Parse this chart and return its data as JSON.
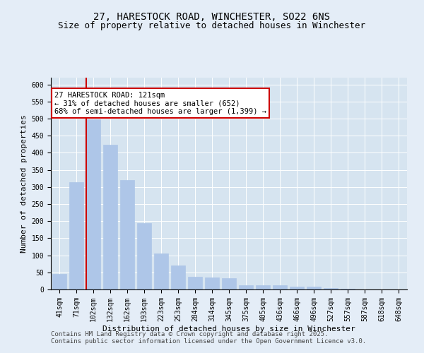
{
  "title_line1": "27, HARESTOCK ROAD, WINCHESTER, SO22 6NS",
  "title_line2": "Size of property relative to detached houses in Winchester",
  "xlabel": "Distribution of detached houses by size in Winchester",
  "ylabel": "Number of detached properties",
  "categories": [
    "41sqm",
    "71sqm",
    "102sqm",
    "132sqm",
    "162sqm",
    "193sqm",
    "223sqm",
    "253sqm",
    "284sqm",
    "314sqm",
    "345sqm",
    "375sqm",
    "405sqm",
    "436sqm",
    "466sqm",
    "496sqm",
    "527sqm",
    "557sqm",
    "587sqm",
    "618sqm",
    "648sqm"
  ],
  "values": [
    46,
    315,
    498,
    423,
    320,
    195,
    105,
    70,
    38,
    35,
    33,
    13,
    12,
    12,
    8,
    8,
    5,
    2,
    1,
    1,
    1
  ],
  "bar_color": "#aec6e8",
  "bar_edge_color": "#aec6e8",
  "subject_line_color": "#cc0000",
  "annotation_text": "27 HARESTOCK ROAD: 121sqm\n← 31% of detached houses are smaller (652)\n68% of semi-detached houses are larger (1,399) →",
  "annotation_box_color": "#ffffff",
  "annotation_box_edge": "#cc0000",
  "ylim": [
    0,
    620
  ],
  "yticks": [
    0,
    50,
    100,
    150,
    200,
    250,
    300,
    350,
    400,
    450,
    500,
    550,
    600
  ],
  "footer_line1": "Contains HM Land Registry data © Crown copyright and database right 2025.",
  "footer_line2": "Contains public sector information licensed under the Open Government Licence v3.0.",
  "bg_color": "#e4edf7",
  "plot_bg_color": "#d6e4f0",
  "title_fontsize": 10,
  "subtitle_fontsize": 9,
  "axis_label_fontsize": 8,
  "tick_fontsize": 7,
  "annotation_fontsize": 7.5,
  "footer_fontsize": 6.5
}
